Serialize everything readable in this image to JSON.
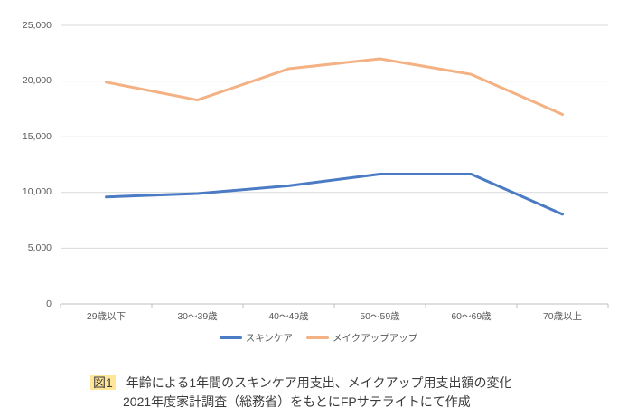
{
  "chart_data": {
    "type": "line",
    "categories": [
      "29歳以下",
      "30〜39歳",
      "40〜49歳",
      "50〜59歳",
      "60〜69歳",
      "70歳以上"
    ],
    "series": [
      {
        "name": "スキンケア",
        "color": "#4A7BC4",
        "values": [
          9600,
          9900,
          10600,
          11650,
          11650,
          8050
        ]
      },
      {
        "name": "メイクアップアップ",
        "color": "#F4B183",
        "values": [
          19900,
          18300,
          21100,
          22000,
          20600,
          17000
        ]
      }
    ],
    "title": "",
    "xlabel": "",
    "ylabel": "",
    "ylim": [
      0,
      25000
    ],
    "ytick_step": 5000,
    "ytick_labels": [
      "0",
      "5,000",
      "10,000",
      "15,000",
      "20,000",
      "25,000"
    ],
    "grid": true,
    "gridline_color": "#D9D9D9",
    "axis_color": "#BFBFBF",
    "axis_text_color": "#595959",
    "legend_position": "bottom"
  },
  "caption": {
    "tag": "図1",
    "tag_highlight": "#FFE699",
    "line1": "年齢による1年間のスキンケア用支出、メイクアップ用支出額の変化",
    "line2": "2021年度家計調査（総務省）をもとにFPサテライトにて作成"
  }
}
